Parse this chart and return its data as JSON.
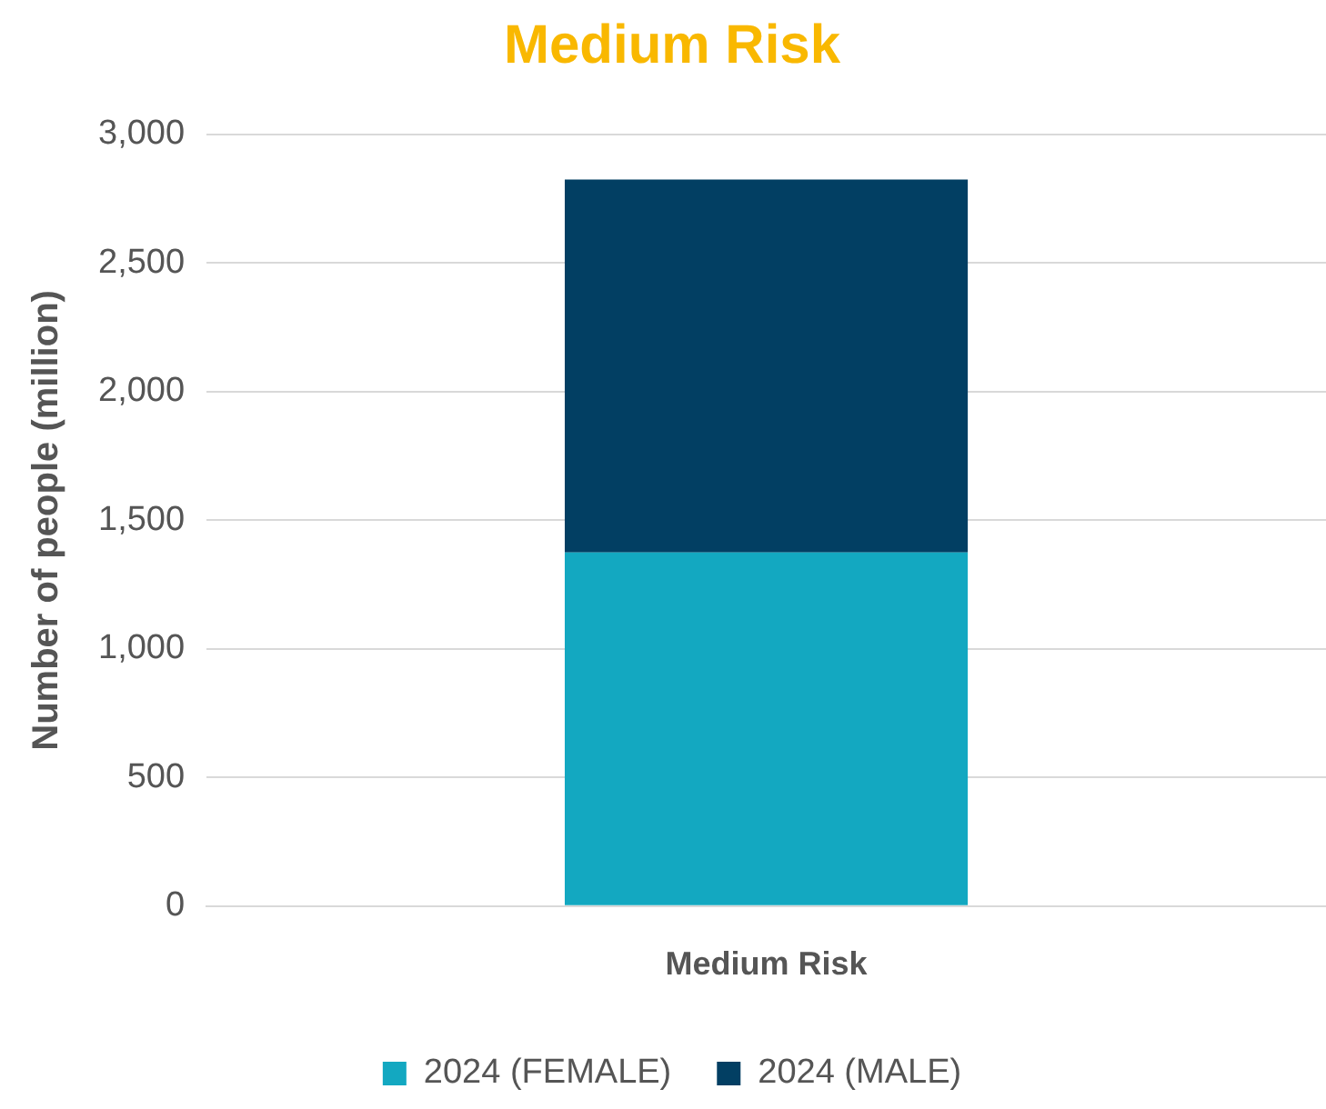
{
  "chart_data": {
    "type": "bar",
    "title": "Medium Risk",
    "ylabel": "Number of people (million)",
    "categories": [
      "Medium Risk"
    ],
    "stacked": true,
    "series": [
      {
        "name": "2024 (FEMALE)",
        "color": "#13a8c1",
        "values": [
          1375
        ]
      },
      {
        "name": "2024 (MALE)",
        "color": "#023f63",
        "values": [
          1450
        ]
      }
    ],
    "ylim": [
      0,
      3000
    ],
    "yticks": [
      {
        "value": 0,
        "label": "0"
      },
      {
        "value": 500,
        "label": "500"
      },
      {
        "value": 1000,
        "label": "1,000"
      },
      {
        "value": 1500,
        "label": "1,500"
      },
      {
        "value": 2000,
        "label": "2,000"
      },
      {
        "value": 2500,
        "label": "2,500"
      },
      {
        "value": 3000,
        "label": "3,000"
      }
    ],
    "grid": "y",
    "legend": "bottom"
  }
}
